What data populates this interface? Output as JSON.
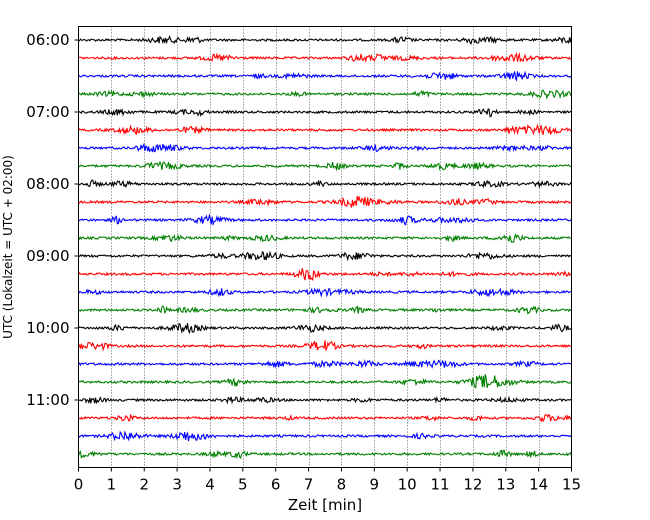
{
  "chart_data": {
    "type": "line",
    "title": "",
    "xlabel": "Zeit  [min]",
    "ylabel": "UTC (Lokalzeit = UTC + 02:00)",
    "xlim": [
      0,
      15
    ],
    "x_ticks": [
      0,
      1,
      2,
      3,
      4,
      5,
      6,
      7,
      8,
      9,
      10,
      11,
      12,
      13,
      14,
      15
    ],
    "x_tick_labels": [
      "0",
      "1",
      "2",
      "3",
      "4",
      "5",
      "6",
      "7",
      "8",
      "9",
      "10",
      "11",
      "12",
      "13",
      "14",
      "15"
    ],
    "y_tick_labels": [
      "06:00",
      "07:00",
      "08:00",
      "09:00",
      "10:00",
      "11:00"
    ],
    "ylim": [
      "06:00",
      "11:59"
    ],
    "vertical_grid": true,
    "grid_style": "dotted",
    "line_interval_minutes": 15,
    "color_cycle": [
      "#000000",
      "#ff0000",
      "#0000ff",
      "#008000"
    ],
    "series": [
      {
        "start": "06:00",
        "color": "#000000"
      },
      {
        "start": "06:15",
        "color": "#ff0000"
      },
      {
        "start": "06:30",
        "color": "#0000ff"
      },
      {
        "start": "06:45",
        "color": "#008000"
      },
      {
        "start": "07:00",
        "color": "#000000"
      },
      {
        "start": "07:15",
        "color": "#ff0000"
      },
      {
        "start": "07:30",
        "color": "#0000ff"
      },
      {
        "start": "07:45",
        "color": "#008000"
      },
      {
        "start": "08:00",
        "color": "#000000"
      },
      {
        "start": "08:15",
        "color": "#ff0000"
      },
      {
        "start": "08:30",
        "color": "#0000ff"
      },
      {
        "start": "08:45",
        "color": "#008000"
      },
      {
        "start": "09:00",
        "color": "#000000"
      },
      {
        "start": "09:15",
        "color": "#ff0000"
      },
      {
        "start": "09:30",
        "color": "#0000ff"
      },
      {
        "start": "09:45",
        "color": "#008000"
      },
      {
        "start": "10:00",
        "color": "#000000"
      },
      {
        "start": "10:15",
        "color": "#ff0000"
      },
      {
        "start": "10:30",
        "color": "#0000ff"
      },
      {
        "start": "10:45",
        "color": "#008000"
      },
      {
        "start": "11:00",
        "color": "#000000"
      },
      {
        "start": "11:15",
        "color": "#ff0000"
      },
      {
        "start": "11:30",
        "color": "#0000ff"
      },
      {
        "start": "11:45",
        "color": "#008000"
      }
    ]
  }
}
